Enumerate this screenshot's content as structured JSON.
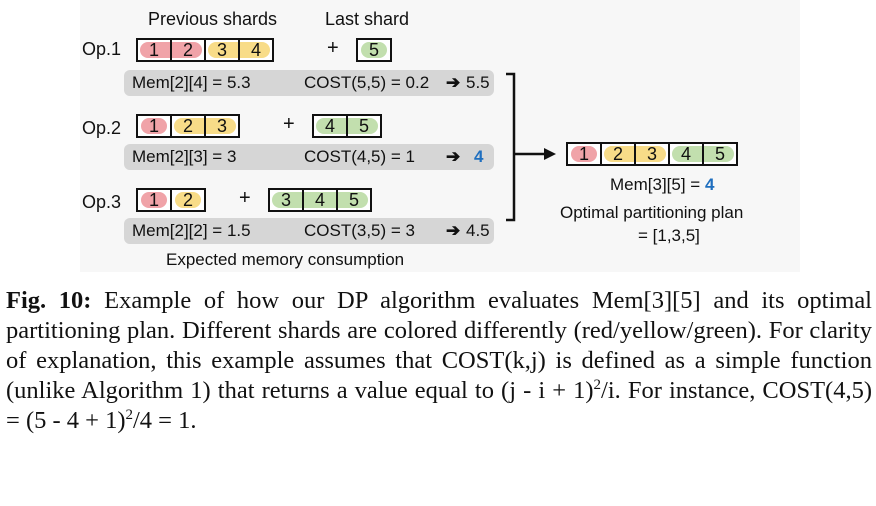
{
  "figure": {
    "header_previous": "Previous shards",
    "header_last": "Last shard",
    "ops": [
      {
        "label": "Op.1",
        "prev": [
          "1",
          "2",
          "3",
          "4"
        ],
        "last": [
          "5"
        ],
        "plus": "+",
        "mem": "Mem[2][4] = 5.3",
        "cost": "COST(5,5) = 0.2",
        "arrow": "➔",
        "result": "5.5"
      },
      {
        "label": "Op.2",
        "prev": [
          "1",
          "2",
          "3"
        ],
        "last": [
          "4",
          "5"
        ],
        "plus": "+",
        "mem": "Mem[2][3] = 3",
        "cost": "COST(4,5) = 1",
        "arrow": "➔",
        "result": "4"
      },
      {
        "label": "Op.3",
        "prev": [
          "1",
          "2"
        ],
        "last": [
          "3",
          "4",
          "5"
        ],
        "plus": "+",
        "mem": "Mem[2][2] = 1.5",
        "cost": "COST(3,5) = 3",
        "arrow": "➔",
        "result": "4.5"
      }
    ],
    "expected_label": "Expected memory consumption",
    "result_seq": [
      "1",
      "2",
      "3",
      "4",
      "5"
    ],
    "result_mem_prefix": "Mem[3][5] = ",
    "result_mem_value": "4",
    "plan_line1": "Optimal partitioning plan",
    "plan_line2": "= [1,3,5]",
    "colors": {
      "red": "#f0a3a8",
      "yellow": "#f8dc88",
      "green": "#c2dfae",
      "highlight": "#1f6fbf"
    }
  },
  "caption": {
    "label": "Fig. 10:",
    "text1": " Example of how our DP algorithm evaluates Mem[3][5] and its optimal partitioning plan. Different shards are colored differently (red/yellow/green). For clarity of explanation, this example assumes that COST(k,j) is defined as a simple function (unlike Algorithm 1) that returns a value equal to (j - i + 1)",
    "sup1": "2",
    "text2": "/i. For instance, COST(4,5) = (5 - 4 + 1)",
    "sup2": "2",
    "text3": "/4 = 1."
  }
}
